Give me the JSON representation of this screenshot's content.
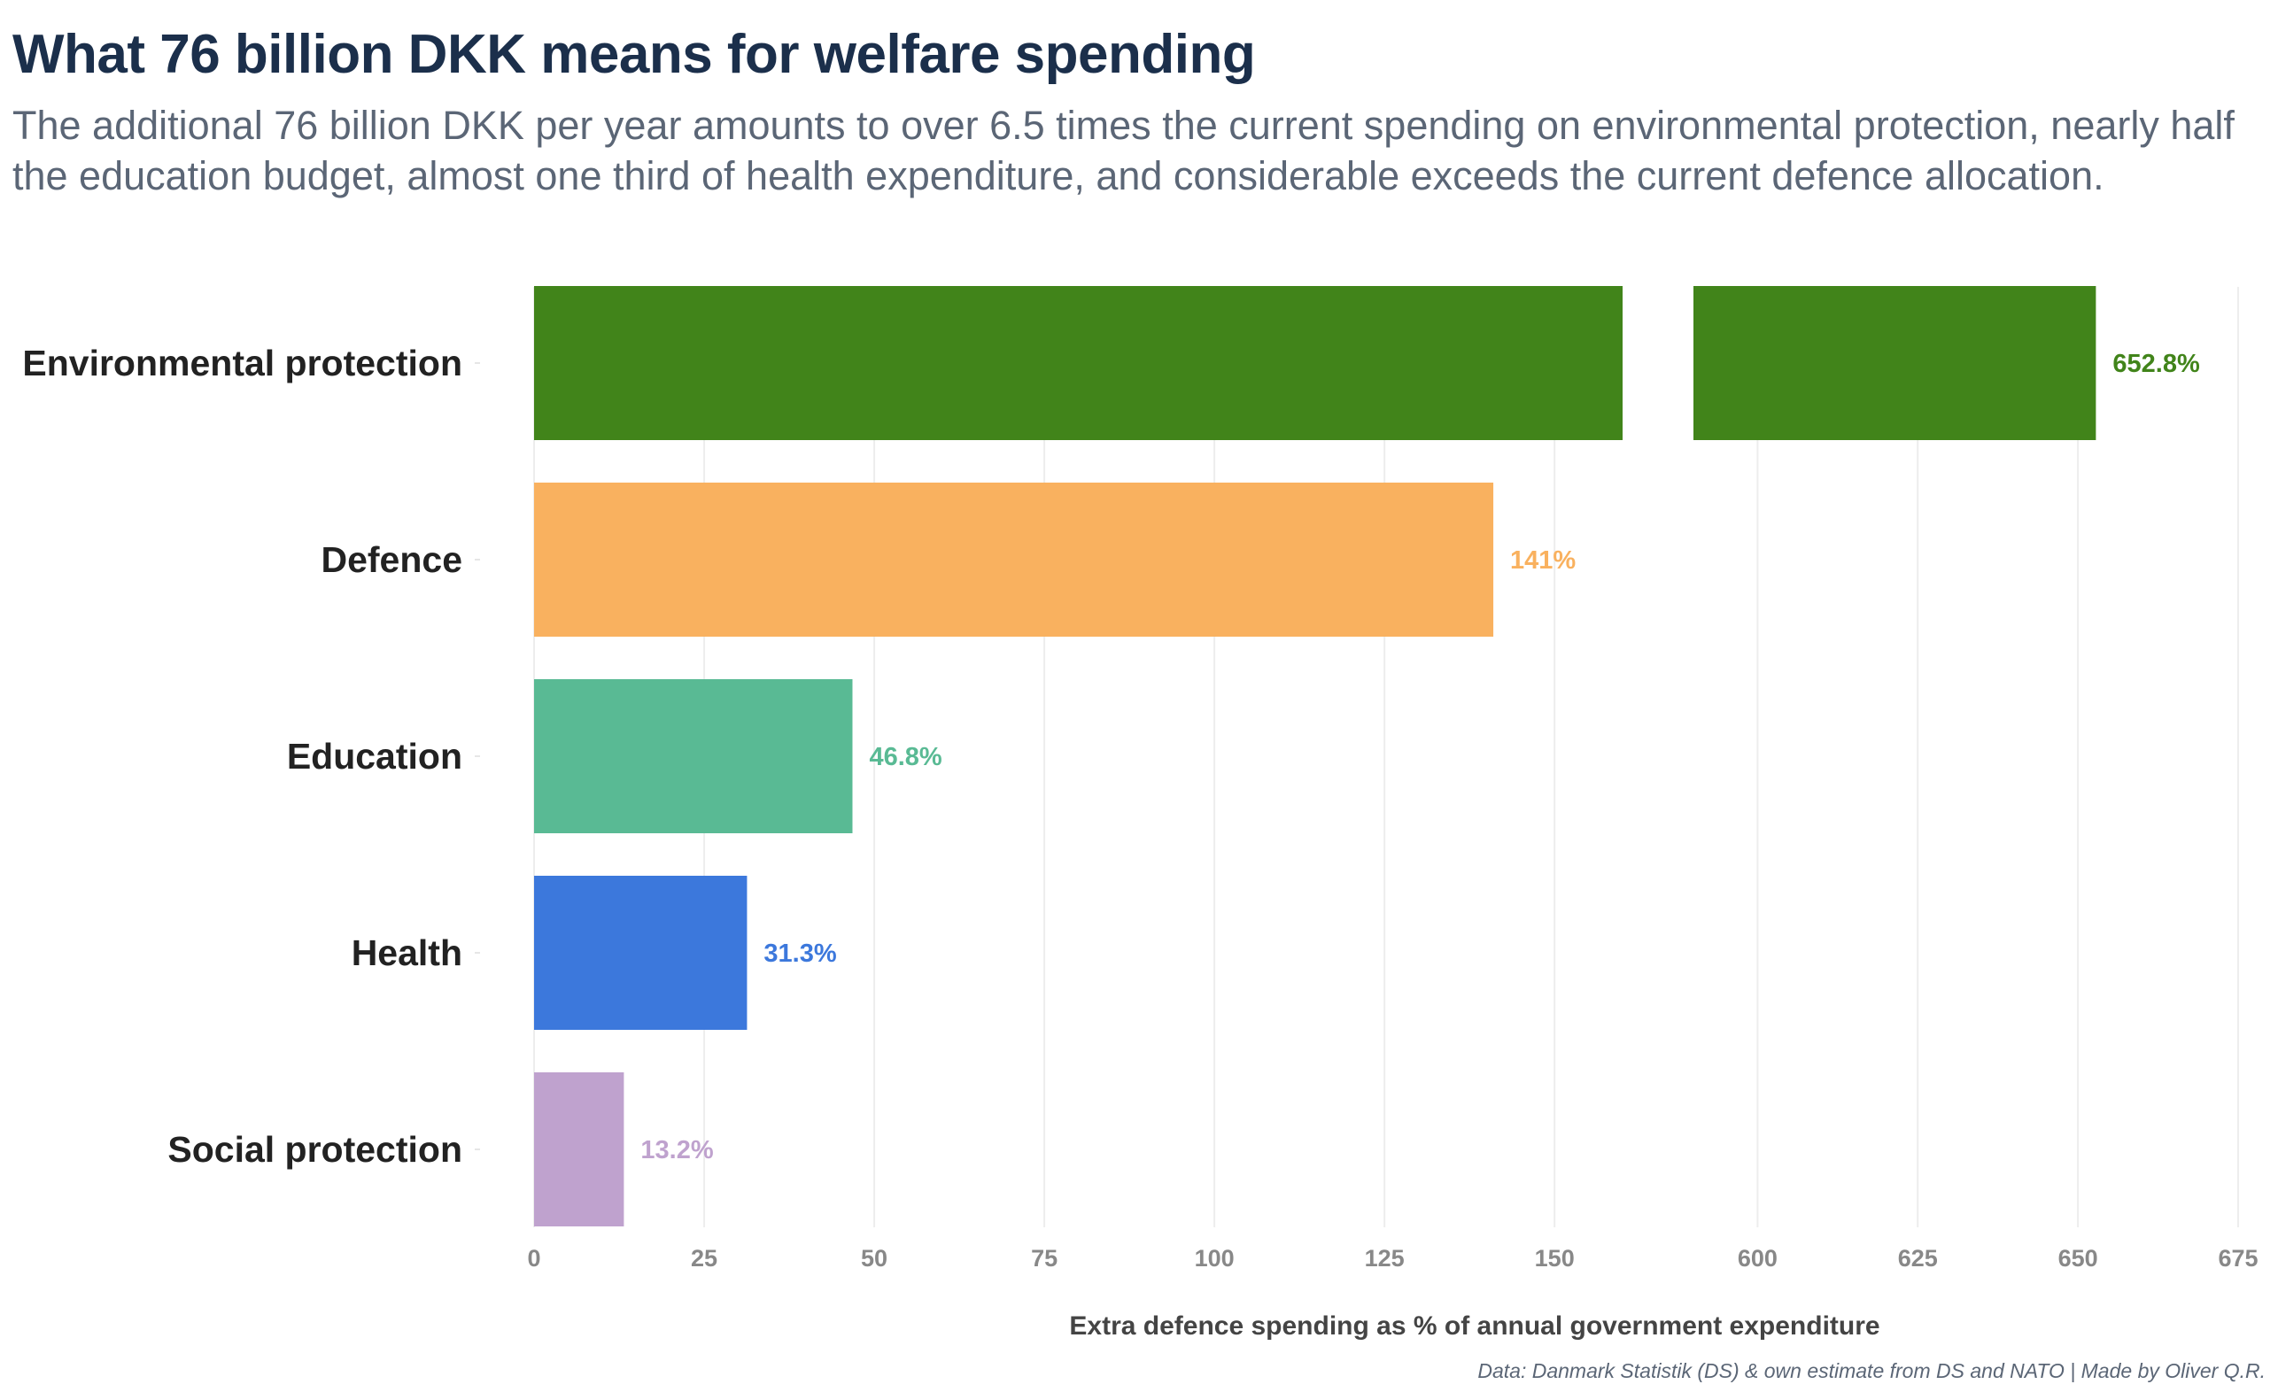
{
  "title": "What 76 billion DKK means for welfare spending",
  "subtitle": "The additional 76 billion DKK per year amounts to over 6.5 times the current spending on environmental protection, nearly half the education budget, almost one third of health expenditure, and considerable exceeds the current defence allocation.",
  "caption": "Data: Danmark Statistik (DS) & own estimate from DS and NATO | Made by Oliver Q.R.",
  "chart_data": {
    "type": "bar",
    "orientation": "horizontal",
    "axis_break": true,
    "categories": [
      "Environmental protection",
      "Defence",
      "Education",
      "Health",
      "Social protection"
    ],
    "values": [
      652.8,
      141,
      46.8,
      31.3,
      13.2
    ],
    "value_labels": [
      "652.8%",
      "141%",
      "46.8%",
      "31.3%",
      "13.2%"
    ],
    "colors": [
      "#41841a",
      "#f9b15f",
      "#59ba94",
      "#3c78dc",
      "#bfa2ce"
    ],
    "xlabel": "Extra defence spending as % of annual government expenditure",
    "ylabel": "",
    "x_segments": [
      {
        "range": [
          0,
          160
        ],
        "ticks": [
          0,
          25,
          50,
          75,
          100,
          125,
          150
        ],
        "tick_labels": [
          "0",
          "25",
          "50",
          "75",
          "100",
          "125",
          "150"
        ]
      },
      {
        "range": [
          590,
          675
        ],
        "ticks": [
          600,
          625,
          650,
          675
        ],
        "tick_labels": [
          "600",
          "625",
          "650",
          "675"
        ]
      }
    ],
    "grid": true,
    "legend": "none"
  }
}
